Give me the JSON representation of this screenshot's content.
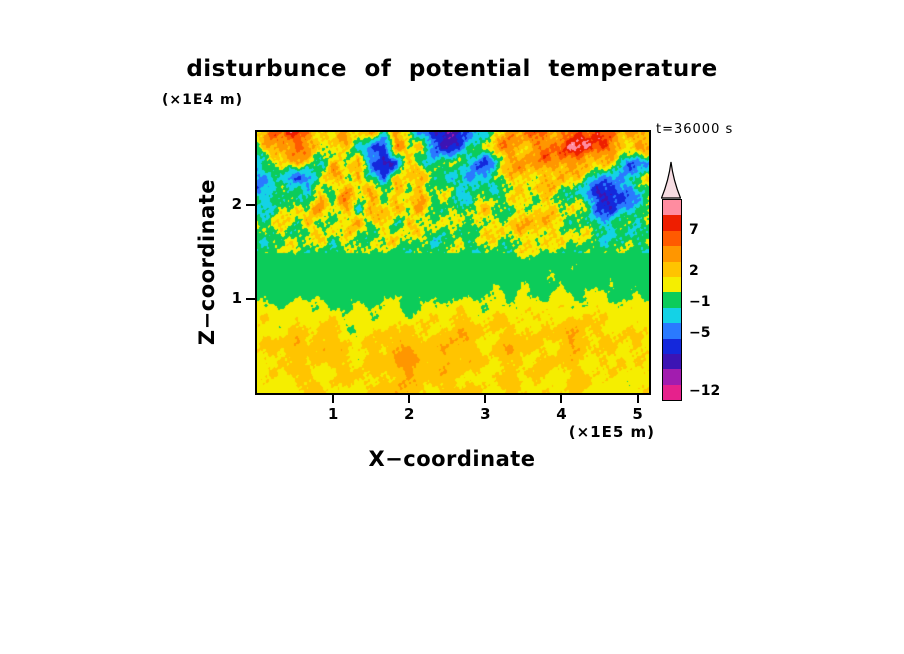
{
  "chart_data": {
    "type": "heatmap",
    "title": "disturbunce of potential temperature",
    "xlabel": "X−coordinate",
    "ylabel": "Z−coordinate",
    "x_unit": "(×1E5 m)",
    "y_unit": "(×1E4 m)",
    "time_annotation": "t=36000 s",
    "x_range": [
      0,
      5.15
    ],
    "y_range": [
      0,
      2.78
    ],
    "x_ticks": [
      1,
      2,
      3,
      4,
      5
    ],
    "y_ticks": [
      1,
      2
    ],
    "grid_shape": [
      18,
      32
    ],
    "legend_position": "right colorbar",
    "values": [
      [
        2,
        6,
        8,
        9,
        7,
        5,
        3,
        6,
        2,
        5,
        1,
        6,
        2,
        -2,
        -7,
        -8,
        -6,
        -3,
        1,
        3,
        5,
        6,
        7,
        6,
        7,
        8,
        9,
        8,
        6,
        5,
        6,
        4
      ],
      [
        2,
        5,
        7,
        7,
        5,
        3,
        1,
        5,
        1,
        -4,
        -5,
        6,
        1,
        5,
        -4,
        -6,
        -3,
        0,
        2,
        5,
        6,
        5,
        6,
        7,
        8,
        9,
        10,
        9,
        7,
        5,
        4,
        5
      ],
      [
        -1,
        0,
        3,
        5,
        3,
        1,
        5,
        1,
        6,
        -5,
        -6,
        -4,
        5,
        1,
        -1,
        1,
        3,
        -2,
        -5,
        1,
        4,
        6,
        5,
        6,
        7,
        6,
        5,
        4,
        3,
        -2,
        -4,
        -2
      ],
      [
        -2,
        -1,
        1,
        -4,
        -5,
        2,
        5,
        2,
        6,
        1,
        -4,
        5,
        1,
        6,
        2,
        -1,
        1,
        -4,
        -2,
        2,
        3,
        5,
        4,
        3,
        5,
        3,
        1,
        -1,
        -3,
        -1,
        1,
        2
      ],
      [
        -1,
        -2,
        0,
        2,
        -1,
        5,
        1,
        6,
        2,
        5,
        1,
        6,
        2,
        5,
        1,
        2,
        -1,
        1,
        2,
        1,
        2,
        3,
        2,
        4,
        2,
        1,
        -2,
        -6,
        -7,
        -5,
        -1,
        1
      ],
      [
        1,
        0,
        2,
        4,
        1,
        6,
        2,
        5,
        1,
        6,
        2,
        5,
        1,
        6,
        2,
        1,
        2,
        1,
        3,
        2,
        1,
        3,
        4,
        3,
        2,
        3,
        1,
        -3,
        -5,
        -2,
        0,
        1
      ],
      [
        2,
        1,
        3,
        1,
        5,
        1,
        4,
        1,
        5,
        1,
        4,
        1,
        5,
        1,
        3,
        1,
        2,
        3,
        2,
        4,
        3,
        4,
        5,
        4,
        3,
        2,
        1,
        0,
        -1,
        1,
        1,
        2
      ],
      [
        1,
        2,
        1,
        3,
        1,
        3,
        1,
        4,
        1,
        3,
        1,
        4,
        1,
        2,
        1,
        1,
        2,
        1,
        2,
        3,
        2,
        3,
        4,
        3,
        2,
        3,
        2,
        1,
        1,
        0,
        1,
        1
      ],
      [
        1,
        1,
        1,
        2,
        1,
        1,
        2,
        1,
        1,
        2,
        1,
        1,
        2,
        1,
        1,
        1,
        1,
        1,
        1,
        2,
        1,
        2,
        2,
        1,
        1,
        2,
        1,
        1,
        1,
        1,
        1,
        1
      ],
      [
        1,
        1,
        1,
        1,
        1,
        1,
        1,
        1,
        1,
        1,
        1,
        1,
        1,
        1,
        1,
        1,
        1,
        1,
        1,
        1,
        1,
        1,
        1,
        2,
        1,
        2,
        1,
        1,
        2,
        1,
        1,
        1
      ],
      [
        1,
        1,
        1,
        1,
        1,
        1,
        1,
        1,
        1,
        1,
        1,
        1,
        1,
        1,
        1,
        1,
        1,
        1,
        1,
        2,
        1,
        2,
        1,
        2,
        2,
        1,
        2,
        1,
        2,
        1,
        2,
        1
      ],
      [
        2,
        2,
        1,
        2,
        2,
        2,
        1,
        2,
        2,
        1,
        2,
        2,
        1,
        2,
        2,
        2,
        2,
        2,
        2,
        2,
        2,
        3,
        2,
        2,
        3,
        2,
        2,
        3,
        2,
        2,
        2,
        2
      ],
      [
        3,
        3,
        3,
        3,
        3,
        3,
        3,
        2,
        3,
        2,
        3,
        3,
        2,
        3,
        3,
        3,
        4,
        3,
        3,
        4,
        3,
        3,
        3,
        4,
        3,
        3,
        4,
        3,
        3,
        3,
        3,
        3
      ],
      [
        3,
        3,
        3,
        4,
        3,
        4,
        4,
        3,
        2,
        3,
        4,
        3,
        4,
        4,
        3,
        4,
        5,
        4,
        4,
        3,
        4,
        4,
        3,
        4,
        4,
        5,
        4,
        4,
        3,
        4,
        3,
        3
      ],
      [
        3,
        4,
        4,
        5,
        4,
        5,
        4,
        4,
        3,
        4,
        4,
        5,
        5,
        4,
        4,
        5,
        5,
        4,
        3,
        4,
        5,
        4,
        4,
        3,
        4,
        5,
        4,
        3,
        4,
        3,
        4,
        3
      ],
      [
        3,
        3,
        4,
        4,
        3,
        4,
        4,
        4,
        3,
        4,
        4,
        5,
        6,
        5,
        4,
        5,
        4,
        4,
        4,
        3,
        4,
        4,
        3,
        4,
        4,
        4,
        3,
        4,
        3,
        4,
        3,
        3
      ],
      [
        3,
        3,
        3,
        4,
        4,
        3,
        3,
        4,
        4,
        3,
        4,
        4,
        5,
        4,
        4,
        4,
        4,
        3,
        3,
        4,
        4,
        3,
        4,
        3,
        3,
        4,
        4,
        3,
        3,
        3,
        3,
        3
      ],
      [
        3,
        3,
        3,
        3,
        3,
        4,
        3,
        3,
        3,
        4,
        4,
        5,
        4,
        4,
        3,
        4,
        4,
        4,
        3,
        3,
        4,
        4,
        3,
        3,
        3,
        4,
        3,
        3,
        3,
        3,
        3,
        3
      ]
    ],
    "palette": {
      "levels": [
        -10,
        -8,
        -6,
        -4,
        -2,
        0,
        2,
        3.5,
        5,
        7,
        8.5,
        10,
        11.5
      ],
      "colors": [
        "#e6218c",
        "#a21caf",
        "#3c14b4",
        "#1428dc",
        "#2a7aff",
        "#14d2e6",
        "#0ccc5a",
        "#f5ee00",
        "#ffc400",
        "#ff9600",
        "#ff5a00",
        "#ee1e00",
        "#ff8ca0",
        "#ffd2dc"
      ]
    },
    "colorbar": {
      "segments": [
        "#ff8ca0",
        "#ee1e00",
        "#ff5a00",
        "#ff9600",
        "#ffc400",
        "#f5ee00",
        "#0ccc5a",
        "#14d2e6",
        "#2a7aff",
        "#1428dc",
        "#3c14b4",
        "#a21caf",
        "#e6218c"
      ],
      "arrow_color": "#f6dce2",
      "labels": [
        {
          "text": "7",
          "pos": 0.155
        },
        {
          "text": "2",
          "pos": 0.36
        },
        {
          "text": "−1",
          "pos": 0.515
        },
        {
          "text": "−5",
          "pos": 0.67
        },
        {
          "text": "−12",
          "pos": 0.96
        }
      ]
    }
  }
}
